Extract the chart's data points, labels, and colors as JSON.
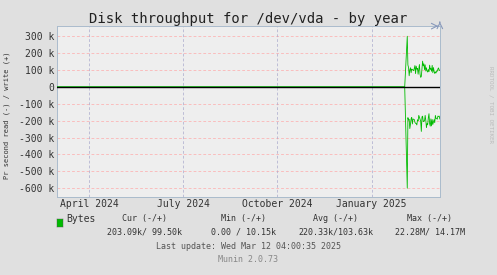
{
  "title": "Disk throughput for /dev/vda - by year",
  "ylabel": "Pr second read (-) / write (+)",
  "background_color": "#e0e0e0",
  "plot_bg_color": "#eeeeee",
  "grid_color_h": "#ffaaaa",
  "grid_color_v": "#aaaacc",
  "line_color": "#00bb00",
  "zero_line_color": "#000000",
  "ylim": [
    -650000,
    360000
  ],
  "yticks": [
    -600000,
    -500000,
    -400000,
    -300000,
    -200000,
    -100000,
    0,
    100000,
    200000,
    300000
  ],
  "ytick_labels": [
    "-600 k",
    "-500 k",
    "-400 k",
    "-300 k",
    "-200 k",
    "-100 k",
    "0",
    "100 k",
    "200 k",
    "300 k"
  ],
  "xtick_positions": [
    0.083,
    0.329,
    0.575,
    0.822
  ],
  "xtick_labels": [
    "April 2024",
    "July 2024",
    "October 2024",
    "January 2025"
  ],
  "legend_label": "Bytes",
  "legend_color": "#00bb00",
  "cur_label": "Cur (-/+)",
  "min_label": "Min (-/+)",
  "avg_label": "Avg (-/+)",
  "max_label": "Max (-/+)",
  "cur_val": "203.09k/ 99.50k",
  "min_val": "0.00 / 10.15k",
  "avg_val": "220.33k/103.63k",
  "max_val": "22.28M/ 14.17M",
  "footer_line3": "Last update: Wed Mar 12 04:00:35 2025",
  "footer_munin": "Munin 2.0.73",
  "rrdtool_label": "RRDTOOL / TOBI OETIKER",
  "spike_write_peak": 300000,
  "spike_write_after": 100000,
  "spike_read_peak": -600000,
  "spike_read_after": -200000,
  "title_fontsize": 10,
  "tick_fontsize": 7,
  "footer_fontsize": 6,
  "legend_fontsize": 7
}
